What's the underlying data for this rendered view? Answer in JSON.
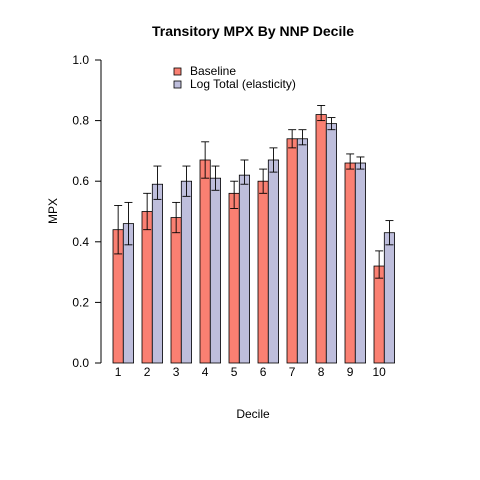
{
  "chart_data": {
    "type": "bar",
    "title": "Transitory MPX By NNP Decile",
    "xlabel": "Decile",
    "ylabel": "MPX",
    "ylim": [
      0,
      1
    ],
    "yticks": [
      "0.0",
      "0.2",
      "0.4",
      "0.6",
      "0.8",
      "1.0"
    ],
    "categories": [
      "1",
      "2",
      "3",
      "4",
      "5",
      "6",
      "7",
      "8",
      "9",
      "10"
    ],
    "legend_position": "top-left",
    "grid": false,
    "error_bars": true,
    "series": [
      {
        "name": "Baseline",
        "color": "#fa8072",
        "values": [
          0.44,
          0.5,
          0.48,
          0.67,
          0.56,
          0.6,
          0.74,
          0.82,
          0.66,
          0.32
        ],
        "err_low": [
          0.36,
          0.44,
          0.43,
          0.61,
          0.51,
          0.56,
          0.71,
          0.8,
          0.64,
          0.28
        ],
        "err_high": [
          0.52,
          0.56,
          0.53,
          0.73,
          0.6,
          0.64,
          0.77,
          0.85,
          0.69,
          0.37
        ]
      },
      {
        "name": "Log Total (elasticity)",
        "color": "#bebedc",
        "values": [
          0.46,
          0.59,
          0.6,
          0.61,
          0.62,
          0.67,
          0.74,
          0.79,
          0.66,
          0.43
        ],
        "err_low": [
          0.39,
          0.54,
          0.55,
          0.57,
          0.59,
          0.63,
          0.72,
          0.77,
          0.64,
          0.39
        ],
        "err_high": [
          0.53,
          0.65,
          0.65,
          0.65,
          0.67,
          0.71,
          0.77,
          0.81,
          0.68,
          0.47
        ]
      }
    ]
  }
}
